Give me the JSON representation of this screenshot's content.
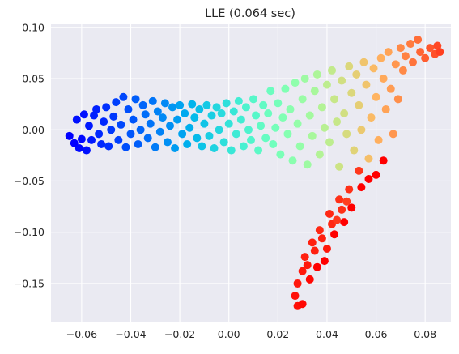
{
  "chart_data": {
    "type": "scatter",
    "title": "LLE (0.064 sec)",
    "xlabel": "",
    "ylabel": "",
    "xlim": [
      -0.0725,
      0.0905
    ],
    "ylim": [
      -0.188,
      0.103
    ],
    "xticks": [
      -0.06,
      -0.04,
      -0.02,
      0.0,
      0.02,
      0.04,
      0.06,
      0.08
    ],
    "xtick_labels": [
      "−0.06",
      "−0.04",
      "−0.02",
      "0.00",
      "0.02",
      "0.04",
      "0.06",
      "0.08"
    ],
    "yticks": [
      0.1,
      0.05,
      0.0,
      -0.05,
      -0.1,
      -0.15
    ],
    "ytick_labels": [
      "0.10",
      "0.05",
      "0.00",
      "−0.05",
      "−0.10",
      "−0.15"
    ],
    "grid": true,
    "background": "#eaeaf2",
    "grid_color": "#ffffff",
    "colormap": "rainbow",
    "series": [
      {
        "points": [
          [
            -0.065,
            -0.006,
            0.0
          ],
          [
            -0.063,
            -0.013,
            0.0
          ],
          [
            -0.061,
            -0.018,
            0.01
          ],
          [
            -0.06,
            -0.009,
            0.01
          ],
          [
            -0.062,
            0.01,
            0.02
          ],
          [
            -0.059,
            0.015,
            0.02
          ],
          [
            -0.058,
            -0.02,
            0.02
          ],
          [
            -0.056,
            -0.01,
            0.03
          ],
          [
            -0.057,
            0.004,
            0.03
          ],
          [
            -0.055,
            0.014,
            0.04
          ],
          [
            -0.054,
            0.02,
            0.04
          ],
          [
            -0.053,
            -0.004,
            0.05
          ],
          [
            -0.052,
            -0.014,
            0.05
          ],
          [
            -0.051,
            0.008,
            0.05
          ],
          [
            -0.05,
            0.022,
            0.06
          ],
          [
            -0.049,
            -0.016,
            0.06
          ],
          [
            -0.048,
            0.0,
            0.07
          ],
          [
            -0.047,
            0.013,
            0.07
          ],
          [
            -0.046,
            0.027,
            0.08
          ],
          [
            -0.045,
            -0.01,
            0.08
          ],
          [
            -0.044,
            0.005,
            0.09
          ],
          [
            -0.043,
            0.032,
            0.09
          ],
          [
            -0.042,
            -0.017,
            0.1
          ],
          [
            -0.041,
            0.02,
            0.1
          ],
          [
            -0.04,
            -0.004,
            0.11
          ],
          [
            -0.039,
            0.01,
            0.11
          ],
          [
            -0.038,
            0.03,
            0.12
          ],
          [
            -0.037,
            -0.014,
            0.12
          ],
          [
            -0.036,
            0.0,
            0.13
          ],
          [
            -0.035,
            0.024,
            0.13
          ],
          [
            -0.034,
            0.015,
            0.14
          ],
          [
            -0.033,
            -0.008,
            0.14
          ],
          [
            -0.032,
            0.006,
            0.15
          ],
          [
            -0.031,
            0.028,
            0.15
          ],
          [
            -0.03,
            -0.017,
            0.16
          ],
          [
            -0.029,
            0.018,
            0.17
          ],
          [
            -0.028,
            -0.002,
            0.17
          ],
          [
            -0.027,
            0.012,
            0.18
          ],
          [
            -0.026,
            0.026,
            0.18
          ],
          [
            -0.025,
            -0.012,
            0.19
          ],
          [
            -0.024,
            0.004,
            0.19
          ],
          [
            -0.023,
            0.022,
            0.2
          ],
          [
            -0.022,
            -0.018,
            0.21
          ],
          [
            -0.021,
            0.01,
            0.21
          ],
          [
            -0.02,
            0.024,
            0.22
          ],
          [
            -0.019,
            -0.004,
            0.22
          ],
          [
            -0.018,
            0.016,
            0.23
          ],
          [
            -0.017,
            -0.014,
            0.24
          ],
          [
            -0.016,
            0.002,
            0.24
          ],
          [
            -0.015,
            0.025,
            0.25
          ],
          [
            -0.014,
            0.012,
            0.26
          ],
          [
            -0.013,
            -0.008,
            0.26
          ],
          [
            -0.012,
            0.02,
            0.27
          ],
          [
            -0.011,
            -0.016,
            0.28
          ],
          [
            -0.01,
            0.006,
            0.28
          ],
          [
            -0.009,
            0.024,
            0.29
          ],
          [
            -0.008,
            -0.006,
            0.3
          ],
          [
            -0.007,
            0.014,
            0.3
          ],
          [
            -0.006,
            -0.018,
            0.31
          ],
          [
            -0.005,
            0.022,
            0.32
          ],
          [
            -0.004,
            0.0,
            0.32
          ],
          [
            -0.003,
            0.016,
            0.33
          ],
          [
            -0.002,
            -0.012,
            0.34
          ],
          [
            -0.001,
            0.026,
            0.34
          ],
          [
            0.0,
            0.006,
            0.35
          ],
          [
            0.001,
            -0.02,
            0.36
          ],
          [
            0.002,
            0.018,
            0.36
          ],
          [
            0.003,
            -0.004,
            0.37
          ],
          [
            0.004,
            0.028,
            0.38
          ],
          [
            0.005,
            0.01,
            0.38
          ],
          [
            0.006,
            -0.016,
            0.39
          ],
          [
            0.007,
            0.022,
            0.4
          ],
          [
            0.008,
            0.0,
            0.4
          ],
          [
            0.009,
            -0.01,
            0.41
          ],
          [
            0.01,
            0.03,
            0.42
          ],
          [
            0.011,
            0.014,
            0.42
          ],
          [
            0.012,
            -0.02,
            0.43
          ],
          [
            0.013,
            0.004,
            0.44
          ],
          [
            0.014,
            0.024,
            0.44
          ],
          [
            0.015,
            -0.008,
            0.45
          ],
          [
            0.016,
            0.016,
            0.46
          ],
          [
            0.017,
            0.038,
            0.46
          ],
          [
            0.018,
            -0.014,
            0.47
          ],
          [
            0.019,
            0.002,
            0.48
          ],
          [
            0.02,
            0.026,
            0.48
          ],
          [
            0.021,
            -0.024,
            0.49
          ],
          [
            0.022,
            0.012,
            0.5
          ],
          [
            0.023,
            0.04,
            0.5
          ],
          [
            0.024,
            -0.004,
            0.51
          ],
          [
            0.025,
            0.02,
            0.52
          ],
          [
            0.026,
            -0.03,
            0.52
          ],
          [
            0.027,
            0.046,
            0.53
          ],
          [
            0.028,
            0.006,
            0.54
          ],
          [
            0.029,
            -0.016,
            0.54
          ],
          [
            0.03,
            0.03,
            0.55
          ],
          [
            0.031,
            0.05,
            0.56
          ],
          [
            0.032,
            -0.034,
            0.56
          ],
          [
            0.033,
            0.014,
            0.57
          ],
          [
            0.034,
            -0.006,
            0.58
          ],
          [
            0.035,
            0.038,
            0.58
          ],
          [
            0.036,
            0.054,
            0.59
          ],
          [
            0.037,
            -0.024,
            0.6
          ],
          [
            0.038,
            0.022,
            0.6
          ],
          [
            0.039,
            0.002,
            0.61
          ],
          [
            0.04,
            0.044,
            0.62
          ],
          [
            0.041,
            -0.012,
            0.62
          ],
          [
            0.042,
            0.058,
            0.63
          ],
          [
            0.043,
            0.03,
            0.64
          ],
          [
            0.044,
            0.008,
            0.64
          ],
          [
            0.045,
            -0.036,
            0.65
          ],
          [
            0.046,
            0.048,
            0.66
          ],
          [
            0.047,
            0.016,
            0.66
          ],
          [
            0.048,
            -0.004,
            0.67
          ],
          [
            0.049,
            0.062,
            0.68
          ],
          [
            0.05,
            0.036,
            0.68
          ],
          [
            0.051,
            -0.02,
            0.69
          ],
          [
            0.052,
            0.054,
            0.7
          ],
          [
            0.053,
            0.024,
            0.7
          ],
          [
            0.054,
            0.0,
            0.71
          ],
          [
            0.055,
            0.066,
            0.72
          ],
          [
            0.056,
            0.044,
            0.72
          ],
          [
            0.057,
            -0.028,
            0.73
          ],
          [
            0.058,
            0.012,
            0.74
          ],
          [
            0.059,
            0.06,
            0.74
          ],
          [
            0.06,
            0.032,
            0.75
          ],
          [
            0.061,
            -0.01,
            0.76
          ],
          [
            0.062,
            0.07,
            0.76
          ],
          [
            0.063,
            0.05,
            0.77
          ],
          [
            0.064,
            0.02,
            0.78
          ],
          [
            0.065,
            0.076,
            0.78
          ],
          [
            0.066,
            0.04,
            0.79
          ],
          [
            0.067,
            -0.004,
            0.8
          ],
          [
            0.068,
            0.064,
            0.8
          ],
          [
            0.069,
            0.03,
            0.81
          ],
          [
            0.07,
            0.08,
            0.82
          ],
          [
            0.071,
            0.058,
            0.82
          ],
          [
            0.072,
            0.072,
            0.83
          ],
          [
            0.074,
            0.084,
            0.84
          ],
          [
            0.075,
            0.066,
            0.85
          ],
          [
            0.077,
            0.088,
            0.86
          ],
          [
            0.078,
            0.076,
            0.87
          ],
          [
            0.08,
            0.07,
            0.88
          ],
          [
            0.082,
            0.08,
            0.89
          ],
          [
            0.084,
            0.074,
            0.9
          ],
          [
            0.085,
            0.082,
            0.91
          ],
          [
            0.086,
            0.076,
            0.92
          ],
          [
            0.053,
            -0.04,
            0.93
          ],
          [
            0.049,
            -0.058,
            0.94
          ],
          [
            0.045,
            -0.068,
            0.94
          ],
          [
            0.041,
            -0.082,
            0.95
          ],
          [
            0.037,
            -0.098,
            0.95
          ],
          [
            0.034,
            -0.11,
            0.96
          ],
          [
            0.031,
            -0.124,
            0.96
          ],
          [
            0.03,
            -0.138,
            0.97
          ],
          [
            0.028,
            -0.15,
            0.97
          ],
          [
            0.027,
            -0.162,
            0.98
          ],
          [
            0.028,
            -0.172,
            0.98
          ],
          [
            0.03,
            -0.17,
            0.99
          ],
          [
            0.033,
            -0.146,
            0.99
          ],
          [
            0.036,
            -0.134,
            1.0
          ],
          [
            0.039,
            -0.128,
            1.0
          ],
          [
            0.043,
            -0.102,
            1.0
          ],
          [
            0.047,
            -0.09,
            1.0
          ],
          [
            0.05,
            -0.076,
            1.0
          ],
          [
            0.054,
            -0.056,
            1.0
          ],
          [
            0.057,
            -0.048,
            1.0
          ],
          [
            0.06,
            -0.044,
            1.0
          ],
          [
            0.063,
            -0.03,
            1.0
          ],
          [
            0.035,
            -0.118,
            0.96
          ],
          [
            0.038,
            -0.106,
            0.96
          ],
          [
            0.042,
            -0.092,
            0.95
          ],
          [
            0.046,
            -0.078,
            0.94
          ],
          [
            0.032,
            -0.132,
            0.97
          ],
          [
            0.044,
            -0.088,
            0.93
          ],
          [
            0.048,
            -0.07,
            0.92
          ],
          [
            0.04,
            -0.116,
            0.97
          ]
        ]
      }
    ]
  }
}
